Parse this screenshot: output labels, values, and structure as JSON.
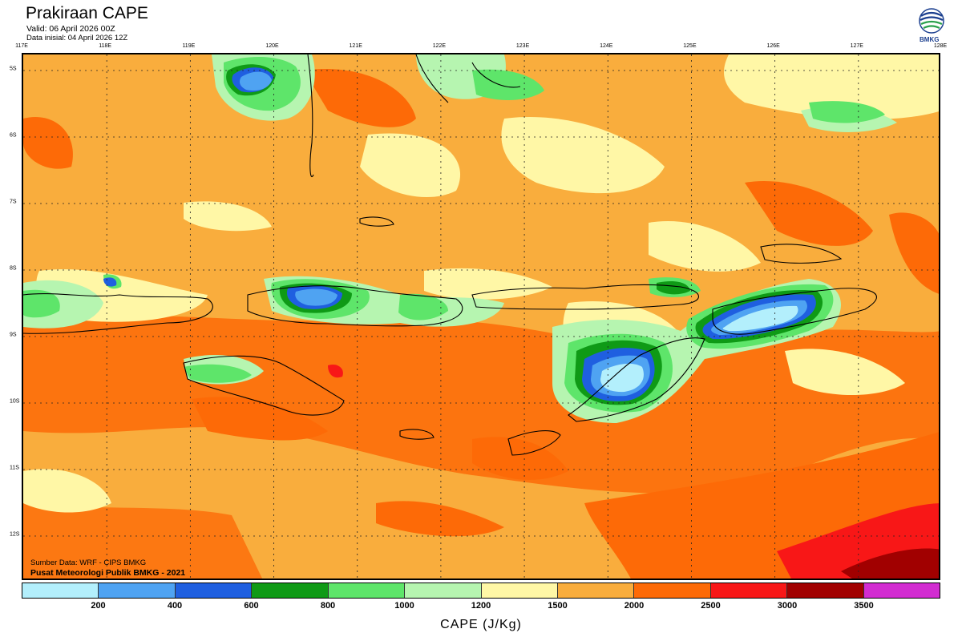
{
  "header": {
    "title": "Prakiraan CAPE",
    "valid": "Valid: 06 April 2026 00Z",
    "init": "Data inisial: 04 April 2026 12Z"
  },
  "logo": {
    "label": "BMKG",
    "icon": "bmkg-logo"
  },
  "map": {
    "lon_ticks": [
      "117E",
      "118E",
      "119E",
      "120E",
      "121E",
      "122E",
      "123E",
      "124E",
      "125E",
      "126E",
      "127E",
      "128E"
    ],
    "lat_ticks": [
      "5S",
      "6S",
      "7S",
      "8S",
      "9S",
      "10S",
      "11S",
      "12S"
    ],
    "lon_range": [
      117,
      128
    ],
    "lat_range": [
      -4.8,
      -12.7
    ],
    "grid": "dotted"
  },
  "credits": {
    "source": "Sumber Data: WRF - CIPS BMKG",
    "org": "Pusat Meteorologi Publik BMKG - 2021"
  },
  "colorbar": {
    "colors": [
      "#b3effc",
      "#4fa3f2",
      "#1f5fe0",
      "#0f9a16",
      "#5ee56a",
      "#b6f5b0",
      "#fff7a6",
      "#f9ad3d",
      "#fd6a07",
      "#f81717",
      "#a10000",
      "#d22cd1"
    ],
    "labels": [
      "200",
      "400",
      "600",
      "800",
      "1000",
      "1200",
      "1500",
      "2000",
      "2500",
      "3000",
      "3500"
    ],
    "xlabel": "CAPE (J/Kg)"
  }
}
